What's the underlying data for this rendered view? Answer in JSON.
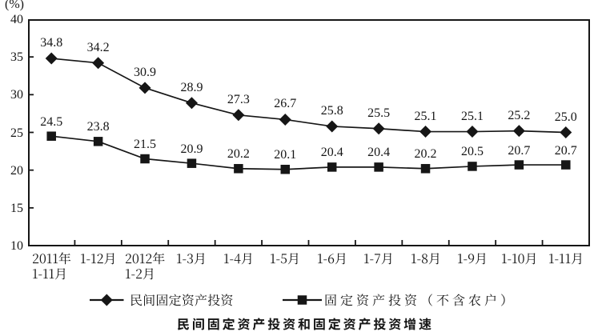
{
  "figure": {
    "y_unit_label": "(%)",
    "title": "民间固定资产投资和固定资产投资增速"
  },
  "chart_data": {
    "type": "line",
    "title": "民间固定资产投资和固定资产投资增速",
    "ylabel": "(%)",
    "ylim": [
      10,
      40
    ],
    "yticks": [
      10,
      15,
      20,
      25,
      30,
      35,
      40
    ],
    "grid": false,
    "legend_position": "bottom",
    "background": "#ffffff",
    "ink_color": "#161616",
    "categories": [
      "2011年\n1-11月",
      "1-12月",
      "2012年\n1-2月",
      "1-3月",
      "1-4月",
      "1-5月",
      "1-6月",
      "1-7月",
      "1-8月",
      "1-9月",
      "1-10月",
      "1-11月"
    ],
    "series": [
      {
        "name": "民间固定资产投资",
        "marker": "diamond",
        "color": "#161616",
        "values": [
          34.8,
          34.2,
          30.9,
          28.9,
          27.3,
          26.7,
          25.8,
          25.5,
          25.1,
          25.1,
          25.2,
          25.0
        ]
      },
      {
        "name": "固定资产投资（不含农户）",
        "marker": "square",
        "color": "#161616",
        "values": [
          24.5,
          23.8,
          21.5,
          20.9,
          20.2,
          20.1,
          20.4,
          20.4,
          20.2,
          20.5,
          20.7,
          20.7
        ]
      }
    ],
    "data_labels": true
  }
}
